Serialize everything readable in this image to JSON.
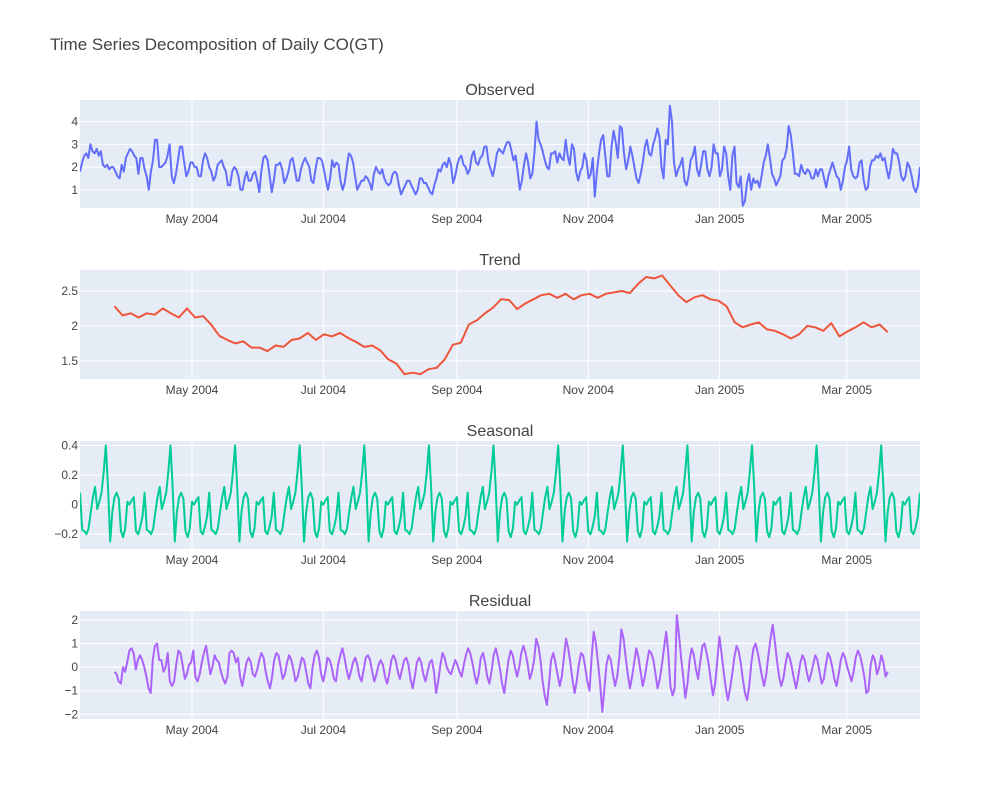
{
  "chart_data": {
    "type": "line",
    "title": "Time Series Decomposition of Daily CO(GT)",
    "x_range": [
      "2004-03-10",
      "2005-04-04"
    ],
    "x_tick_labels": [
      "May 2004",
      "Jul 2004",
      "Sep 2004",
      "Nov 2004",
      "Jan 2005",
      "Mar 2005"
    ],
    "x_tick_dates": [
      "2004-05-01",
      "2004-07-01",
      "2004-09-01",
      "2004-11-01",
      "2005-01-01",
      "2005-03-01"
    ],
    "grid": true,
    "legend": "none",
    "colors": {
      "plot_bg": "#e5ecf6",
      "grid": "#ffffff",
      "text": "#444444"
    },
    "panels": [
      {
        "subtitle": "Observed",
        "color": "#636efa",
        "ylim": [
          0.2,
          4.95
        ],
        "y_ticks": [
          1,
          2,
          3,
          4
        ],
        "y_tick_labels": [
          "1",
          "2",
          "3",
          "4"
        ],
        "start_date": "2004-03-10",
        "end_date": "2005-04-04",
        "x_step_days": 1,
        "values": [
          1.8,
          2.2,
          2.5,
          2.6,
          2.4,
          3.0,
          2.7,
          2.6,
          2.8,
          2.5,
          2.7,
          2.1,
          2.0,
          2.1,
          1.9,
          2.0,
          2.0,
          1.8,
          1.6,
          1.5,
          2.1,
          1.8,
          2.4,
          2.6,
          2.8,
          2.7,
          2.5,
          2.4,
          1.7,
          2.4,
          2.4,
          1.9,
          1.6,
          1.0,
          1.8,
          2.3,
          3.2,
          3.2,
          2.0,
          2.0,
          2.1,
          2.2,
          2.5,
          3.0,
          1.6,
          1.3,
          1.7,
          2.3,
          2.9,
          2.9,
          2.2,
          1.6,
          1.8,
          2.2,
          2.2,
          2.0,
          2.0,
          1.6,
          1.6,
          2.3,
          2.6,
          2.4,
          2.0,
          1.8,
          1.4,
          1.6,
          2.1,
          2.2,
          2.3,
          2.0,
          1.8,
          1.2,
          1.2,
          1.8,
          2.0,
          1.9,
          1.6,
          1.0,
          1.0,
          1.5,
          1.8,
          1.4,
          1.4,
          1.7,
          1.8,
          1.4,
          0.9,
          1.8,
          2.4,
          2.5,
          2.3,
          1.6,
          0.9,
          1.4,
          2.1,
          2.1,
          2.2,
          1.9,
          1.3,
          1.5,
          1.8,
          2.3,
          2.4,
          1.9,
          1.4,
          1.4,
          1.9,
          2.2,
          2.4,
          2.2,
          2.0,
          1.4,
          1.3,
          1.9,
          2.4,
          2.4,
          2.3,
          1.9,
          1.4,
          1.0,
          1.5,
          2.3,
          2.0,
          2.2,
          2.1,
          1.4,
          1.0,
          1.3,
          2.0,
          2.6,
          2.5,
          2.2,
          1.6,
          1.0,
          1.2,
          1.4,
          1.4,
          1.6,
          1.5,
          1.3,
          1.0,
          1.7,
          2.0,
          1.8,
          1.7,
          1.9,
          1.5,
          1.3,
          1.2,
          1.3,
          1.7,
          1.8,
          1.7,
          1.2,
          0.8,
          1.0,
          1.2,
          1.4,
          1.4,
          1.2,
          1.0,
          0.8,
          1.0,
          1.5,
          1.5,
          1.3,
          1.3,
          1.1,
          0.9,
          0.8,
          1.2,
          1.5,
          1.9,
          1.8,
          2.1,
          2.2,
          2.0,
          2.4,
          2.1,
          1.3,
          1.6,
          2.1,
          2.4,
          2.5,
          2.1,
          2.0,
          1.7,
          1.9,
          2.5,
          2.7,
          2.2,
          2.1,
          2.4,
          2.5,
          2.9,
          2.9,
          2.2,
          1.9,
          1.6,
          2.0,
          2.6,
          2.8,
          2.7,
          2.6,
          2.9,
          3.1,
          3.1,
          2.7,
          2.3,
          2.5,
          1.8,
          1.0,
          1.4,
          2.1,
          2.6,
          2.2,
          1.5,
          1.7,
          2.6,
          4.0,
          3.2,
          3.0,
          2.7,
          2.3,
          2.0,
          1.9,
          2.6,
          2.6,
          2.7,
          2.2,
          2.6,
          2.4,
          2.3,
          3.2,
          2.5,
          2.1,
          3.0,
          2.8,
          1.8,
          1.4,
          1.8,
          2.0,
          2.6,
          2.3,
          1.5,
          1.7,
          2.4,
          0.7,
          1.8,
          2.6,
          3.2,
          3.4,
          2.5,
          1.6,
          1.6,
          2.9,
          3.6,
          3.1,
          2.4,
          3.8,
          3.7,
          2.6,
          1.9,
          2.3,
          2.9,
          2.5,
          2.0,
          1.5,
          1.3,
          1.7,
          2.2,
          2.9,
          3.2,
          2.6,
          2.5,
          3.0,
          3.3,
          3.7,
          3.3,
          2.0,
          1.5,
          3.2,
          3.0,
          4.7,
          4.0,
          2.2,
          1.6,
          1.9,
          2.1,
          2.4,
          1.4,
          1.2,
          1.6,
          2.3,
          2.5,
          2.9,
          1.9,
          1.6,
          2.1,
          2.7,
          2.7,
          1.9,
          1.6,
          2.0,
          3.0,
          2.6,
          2.6,
          1.6,
          1.9,
          2.9,
          2.6,
          1.6,
          1.0,
          2.5,
          2.9,
          1.3,
          1.1,
          1.6,
          0.3,
          0.5,
          1.3,
          1.7,
          1.0,
          1.5,
          1.3,
          1.4,
          1.1,
          1.6,
          2.2,
          2.5,
          3.0,
          2.4,
          1.7,
          1.5,
          1.2,
          1.4,
          1.6,
          2.3,
          2.4,
          2.8,
          3.8,
          3.4,
          2.6,
          1.7,
          1.7,
          1.6,
          2.1,
          1.8,
          1.7,
          1.9,
          1.8,
          1.5,
          1.5,
          1.9,
          1.6,
          1.9,
          1.9,
          1.5,
          1.1,
          1.6,
          1.9,
          2.2,
          1.9,
          1.6,
          1.5,
          1.0,
          1.4,
          2.0,
          2.3,
          2.9,
          1.9,
          1.6,
          1.5,
          1.6,
          2.2,
          2.3,
          1.4,
          1.0,
          1.1,
          2.0,
          2.3,
          2.3,
          2.5,
          2.4,
          2.6,
          2.3,
          2.4,
          1.9,
          1.5,
          2.0,
          2.8,
          2.6,
          2.6,
          2.2,
          1.6,
          1.4,
          1.6,
          2.2,
          2.0,
          1.6,
          1.1,
          0.9,
          1.2,
          2.0
        ]
      },
      {
        "subtitle": "Trend",
        "color": "#ef553b",
        "ylim": [
          1.24,
          2.8
        ],
        "y_ticks": [
          1.5,
          2,
          2.5
        ],
        "y_tick_labels": [
          "1.5",
          "2",
          "2.5"
        ],
        "start_date": "2004-03-26",
        "end_date": "2005-03-20",
        "x_step_days": 7,
        "values": [
          2.28,
          2.15,
          2.18,
          2.12,
          2.18,
          2.16,
          2.25,
          2.18,
          2.12,
          2.25,
          2.12,
          2.14,
          2.02,
          1.86,
          1.8,
          1.75,
          1.78,
          1.69,
          1.69,
          1.64,
          1.72,
          1.7,
          1.8,
          1.82,
          1.9,
          1.8,
          1.88,
          1.85,
          1.9,
          1.83,
          1.77,
          1.7,
          1.72,
          1.65,
          1.52,
          1.46,
          1.31,
          1.33,
          1.31,
          1.38,
          1.4,
          1.52,
          1.73,
          1.76,
          2.02,
          2.08,
          2.18,
          2.26,
          2.38,
          2.37,
          2.24,
          2.32,
          2.38,
          2.44,
          2.46,
          2.4,
          2.46,
          2.38,
          2.44,
          2.46,
          2.4,
          2.46,
          2.48,
          2.5,
          2.47,
          2.6,
          2.7,
          2.68,
          2.72,
          2.58,
          2.44,
          2.34,
          2.41,
          2.44,
          2.38,
          2.36,
          2.28,
          2.05,
          1.98,
          2.02,
          2.05,
          1.95,
          1.93,
          1.88,
          1.82,
          1.88,
          2.0,
          1.98,
          1.93,
          2.04,
          1.85,
          1.92,
          1.98,
          2.05,
          1.98,
          2.02,
          1.91
        ]
      },
      {
        "subtitle": "Seasonal",
        "color": "#00cc96",
        "ylim": [
          -0.3,
          0.43
        ],
        "y_ticks": [
          -0.2,
          0,
          0.2,
          0.4
        ],
        "y_tick_labels": [
          "−0.2",
          "0",
          "0.2",
          "0.4"
        ],
        "start_date": "2004-03-10",
        "end_date": "2005-04-04",
        "x_step_days": 1,
        "cycle_days": 30,
        "cycle_values": [
          0.08,
          -0.17,
          -0.18,
          -0.2,
          -0.16,
          -0.05,
          0.05,
          0.12,
          -0.03,
          0.02,
          0.08,
          0.22,
          0.4,
          0.12,
          -0.25,
          -0.05,
          0.05,
          0.08,
          0.04,
          -0.18,
          -0.22,
          -0.16,
          0.02,
          0.0,
          0.03,
          0.05,
          -0.18,
          -0.2,
          -0.15,
          -0.08
        ]
      },
      {
        "subtitle": "Residual",
        "color": "#ab63fa",
        "ylim": [
          -2.2,
          2.38
        ],
        "y_ticks": [
          -2,
          -1,
          0,
          1,
          2
        ],
        "y_tick_labels": [
          "−2",
          "−1",
          "0",
          "1",
          "2"
        ],
        "start_date": "2004-03-26",
        "end_date": "2005-03-20",
        "x_step_days": 1,
        "values": [
          -0.2,
          -0.3,
          -0.6,
          -0.7,
          0.0,
          -0.2,
          0.2,
          0.7,
          0.8,
          0.6,
          -0.1,
          0.3,
          0.5,
          0.3,
          0.0,
          -0.4,
          -0.9,
          -1.1,
          0.3,
          0.9,
          1.0,
          0.3,
          0.3,
          -0.2,
          0.0,
          0.6,
          -0.6,
          -0.8,
          -0.6,
          0.1,
          0.7,
          0.6,
          0.1,
          -0.5,
          -0.3,
          0.1,
          0.2,
          0.7,
          -0.4,
          -0.6,
          -0.3,
          0.2,
          0.6,
          0.9,
          0.3,
          -0.3,
          0.0,
          0.5,
          0.3,
          0.2,
          -0.2,
          -0.5,
          -0.7,
          -0.4,
          0.6,
          0.7,
          0.6,
          0.2,
          0.4,
          -0.4,
          -0.8,
          -0.3,
          0.2,
          0.4,
          0.2,
          -0.3,
          -0.4,
          -0.1,
          0.3,
          0.6,
          0.4,
          -0.2,
          -0.6,
          -0.9,
          -0.4,
          0.3,
          0.6,
          0.5,
          0.0,
          -0.5,
          -0.3,
          0.2,
          0.5,
          0.3,
          -0.1,
          -0.6,
          -0.4,
          0.0,
          0.4,
          0.3,
          -0.2,
          -0.7,
          -0.9,
          0.0,
          0.5,
          0.7,
          0.4,
          -0.3,
          -0.6,
          -0.2,
          0.4,
          0.3,
          0.0,
          -0.5,
          -0.6,
          0.1,
          0.5,
          0.8,
          0.4,
          -0.1,
          -0.5,
          -0.2,
          0.2,
          0.4,
          0.1,
          -0.4,
          -0.6,
          -0.1,
          0.4,
          0.5,
          0.3,
          -0.2,
          -0.6,
          -0.3,
          0.1,
          0.3,
          0.1,
          -0.4,
          -0.7,
          -0.3,
          0.3,
          0.5,
          0.3,
          -0.2,
          -0.5,
          -0.1,
          0.3,
          0.4,
          0.1,
          -0.5,
          -0.9,
          -0.4,
          0.2,
          0.4,
          0.2,
          -0.3,
          -0.6,
          -0.2,
          0.2,
          0.3,
          -0.2,
          -1.1,
          -0.6,
          0.1,
          0.6,
          0.4,
          0.0,
          -0.2,
          -0.3,
          0.0,
          0.3,
          0.1,
          -0.2,
          -0.4,
          0.1,
          0.5,
          0.8,
          0.6,
          0.2,
          -0.3,
          -0.7,
          -0.3,
          0.4,
          0.6,
          0.2,
          -0.4,
          -0.7,
          -0.2,
          0.5,
          0.8,
          0.4,
          -0.1,
          -0.7,
          -1.1,
          -0.4,
          0.3,
          0.7,
          0.5,
          0.0,
          -0.4,
          0.0,
          0.6,
          0.9,
          0.6,
          0.1,
          -0.5,
          -0.2,
          0.3,
          1.2,
          0.9,
          0.3,
          -0.6,
          -1.2,
          -1.6,
          -0.7,
          0.3,
          0.6,
          0.2,
          -0.3,
          -0.8,
          -0.4,
          0.4,
          1.2,
          0.8,
          0.2,
          -0.5,
          -1.1,
          -0.6,
          0.1,
          0.6,
          0.5,
          0.0,
          -0.6,
          -1.0,
          0.4,
          1.5,
          1.0,
          0.2,
          -0.7,
          -1.9,
          -0.9,
          0.1,
          0.5,
          0.3,
          -0.3,
          -0.8,
          -0.4,
          0.4,
          1.6,
          1.2,
          0.4,
          -0.3,
          -0.9,
          -0.4,
          0.2,
          0.8,
          0.4,
          -0.2,
          -0.8,
          -0.4,
          0.2,
          0.7,
          0.6,
          0.3,
          -0.3,
          -0.9,
          -0.5,
          0.1,
          0.8,
          1.5,
          0.6,
          -0.8,
          -1.2,
          -0.9,
          2.2,
          1.4,
          0.4,
          -0.4,
          -1.3,
          -0.7,
          0.3,
          0.8,
          0.5,
          -0.1,
          -0.5,
          0.2,
          0.9,
          1.0,
          0.6,
          0.1,
          -0.6,
          -1.2,
          -0.7,
          0.3,
          1.3,
          0.6,
          -0.2,
          -0.9,
          -1.4,
          -0.9,
          -0.3,
          0.4,
          0.9,
          0.7,
          0.2,
          -0.5,
          -1.1,
          -1.4,
          -0.8,
          0.2,
          0.8,
          1.0,
          0.6,
          0.1,
          -0.4,
          -0.8,
          -0.3,
          0.5,
          1.2,
          1.8,
          1.1,
          0.3,
          -0.4,
          -0.8,
          -0.5,
          0.1,
          0.6,
          0.4,
          0.0,
          -0.5,
          -0.9,
          -0.4,
          0.2,
          0.5,
          0.3,
          -0.2,
          -0.6,
          -0.3,
          0.1,
          0.5,
          0.3,
          -0.2,
          -0.7,
          -0.5,
          0.1,
          0.6,
          0.4,
          0.0,
          -0.5,
          -0.8,
          -0.3,
          0.3,
          0.6,
          0.4,
          0.0,
          -0.3,
          -0.6,
          -0.2,
          0.4,
          0.7,
          0.5,
          0.1,
          -0.4,
          -1.1,
          -1.0,
          0.1,
          0.5,
          0.3,
          -0.3,
          0.0,
          0.5,
          0.2,
          -0.4,
          -0.2
        ]
      }
    ]
  }
}
